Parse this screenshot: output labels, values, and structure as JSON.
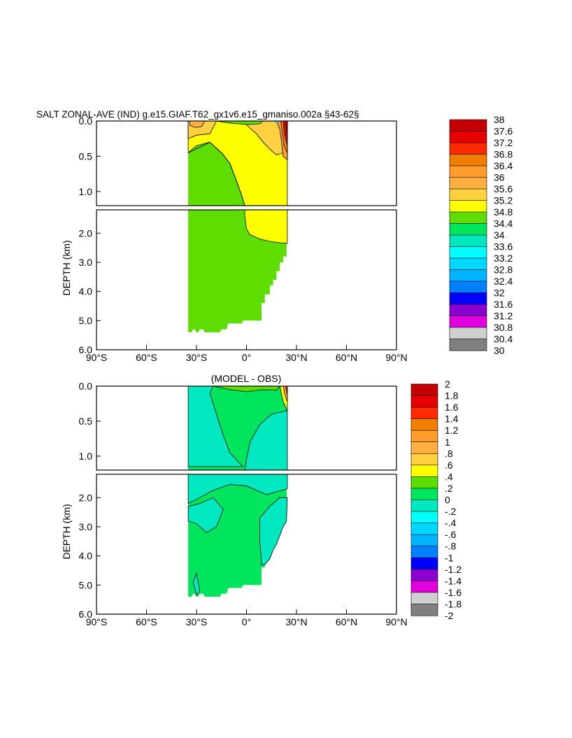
{
  "chart_data": [
    {
      "type": "heatmap",
      "title": "SALT ZONAL-AVE (IND) g.e15.GIAF.T62_gx1v6.e15_gmaniso.002a §43-62§",
      "ylabel": "DEPTH (km)",
      "xlim": [
        -90,
        90
      ],
      "ylim_upper_km": [
        0.0,
        1.2
      ],
      "ylim_lower_km": [
        1.2,
        6.0
      ],
      "x_ticks": [
        "90°S",
        "60°S",
        "30°S",
        "0°",
        "30°N",
        "60°N",
        "90°N"
      ],
      "y_ticks_upper": [
        "0.0",
        "0.5",
        "1.0"
      ],
      "y_ticks_lower": [
        "2.0",
        "3.0",
        "4.0",
        "5.0",
        "6.0"
      ],
      "colorbar_labels": [
        "38",
        "37.6",
        "37.2",
        "36.8",
        "36.4",
        "36",
        "35.6",
        "35.2",
        "34.8",
        "34.4",
        "34",
        "33.6",
        "33.2",
        "32.8",
        "32.4",
        "32",
        "31.6",
        "31.2",
        "30.8",
        "30.4",
        "30"
      ],
      "colorbar_colors": [
        "#c40000",
        "#e60000",
        "#ff2a00",
        "#f07e00",
        "#ff9c2a",
        "#ffb040",
        "#ffd040",
        "#ffff00",
        "#5ddd00",
        "#00e55e",
        "#00e8c0",
        "#00ffff",
        "#00d8ff",
        "#00b4ff",
        "#0080ff",
        "#0000ff",
        "#8a00d0",
        "#e000e0",
        "#d0d0d0",
        "#808080"
      ],
      "regions": [
        {
          "value": 34.6,
          "description": "south of ~15S below ~0.5 km and most deep ocean"
        },
        {
          "value": 35.0,
          "description": "upper layer between ~30S and ~25N, deep north of ~0 to ~2.3 km"
        },
        {
          "value": 35.4,
          "description": "upper 0.5 km near 10N-25N"
        },
        {
          "value": 35.8,
          "description": "surface near 30S-20S"
        },
        {
          "value": 37.0,
          "description": "surface near 25N (Red Sea / Persian Gulf)"
        }
      ]
    },
    {
      "type": "heatmap",
      "title": "(MODEL - OBS)",
      "ylabel": "DEPTH (km)",
      "xlim": [
        -90,
        90
      ],
      "x_ticks": [
        "90°S",
        "60°S",
        "30°S",
        "0°",
        "30°N",
        "60°N",
        "90°N"
      ],
      "y_ticks_upper": [
        "0.0",
        "0.5",
        "1.0"
      ],
      "y_ticks_lower": [
        "2.0",
        "3.0",
        "4.0",
        "5.0",
        "6.0"
      ],
      "colorbar_labels": [
        "2",
        "1.8",
        "1.6",
        "1.4",
        "1.2",
        "1",
        ".8",
        ".6",
        ".4",
        ".2",
        "0",
        "-.2",
        "-.4",
        "-.6",
        "-.8",
        "-1",
        "-1.2",
        "-1.4",
        "-1.6",
        "-1.8",
        "-2"
      ],
      "colorbar_colors": [
        "#c40000",
        "#e60000",
        "#ff2a00",
        "#f07e00",
        "#ff9c2a",
        "#ffb040",
        "#ffd040",
        "#ffff00",
        "#5ddd00",
        "#00e55e",
        "#00e8c0",
        "#00ffff",
        "#00d8ff",
        "#00b4ff",
        "#0080ff",
        "#0000ff",
        "#8a00d0",
        "#e000e0",
        "#d0d0d0",
        "#808080"
      ],
      "regions": [
        {
          "value": 0.1,
          "description": "deep ocean and central upper band"
        },
        {
          "value": -0.1,
          "description": "southern upper ocean and 1.2-2 km band, 15N-25N below 0.5 km"
        },
        {
          "value": 0.3,
          "description": "thin surface layer near 20S-20N"
        },
        {
          "value": 1.5,
          "description": "surface near 25N"
        }
      ]
    }
  ]
}
